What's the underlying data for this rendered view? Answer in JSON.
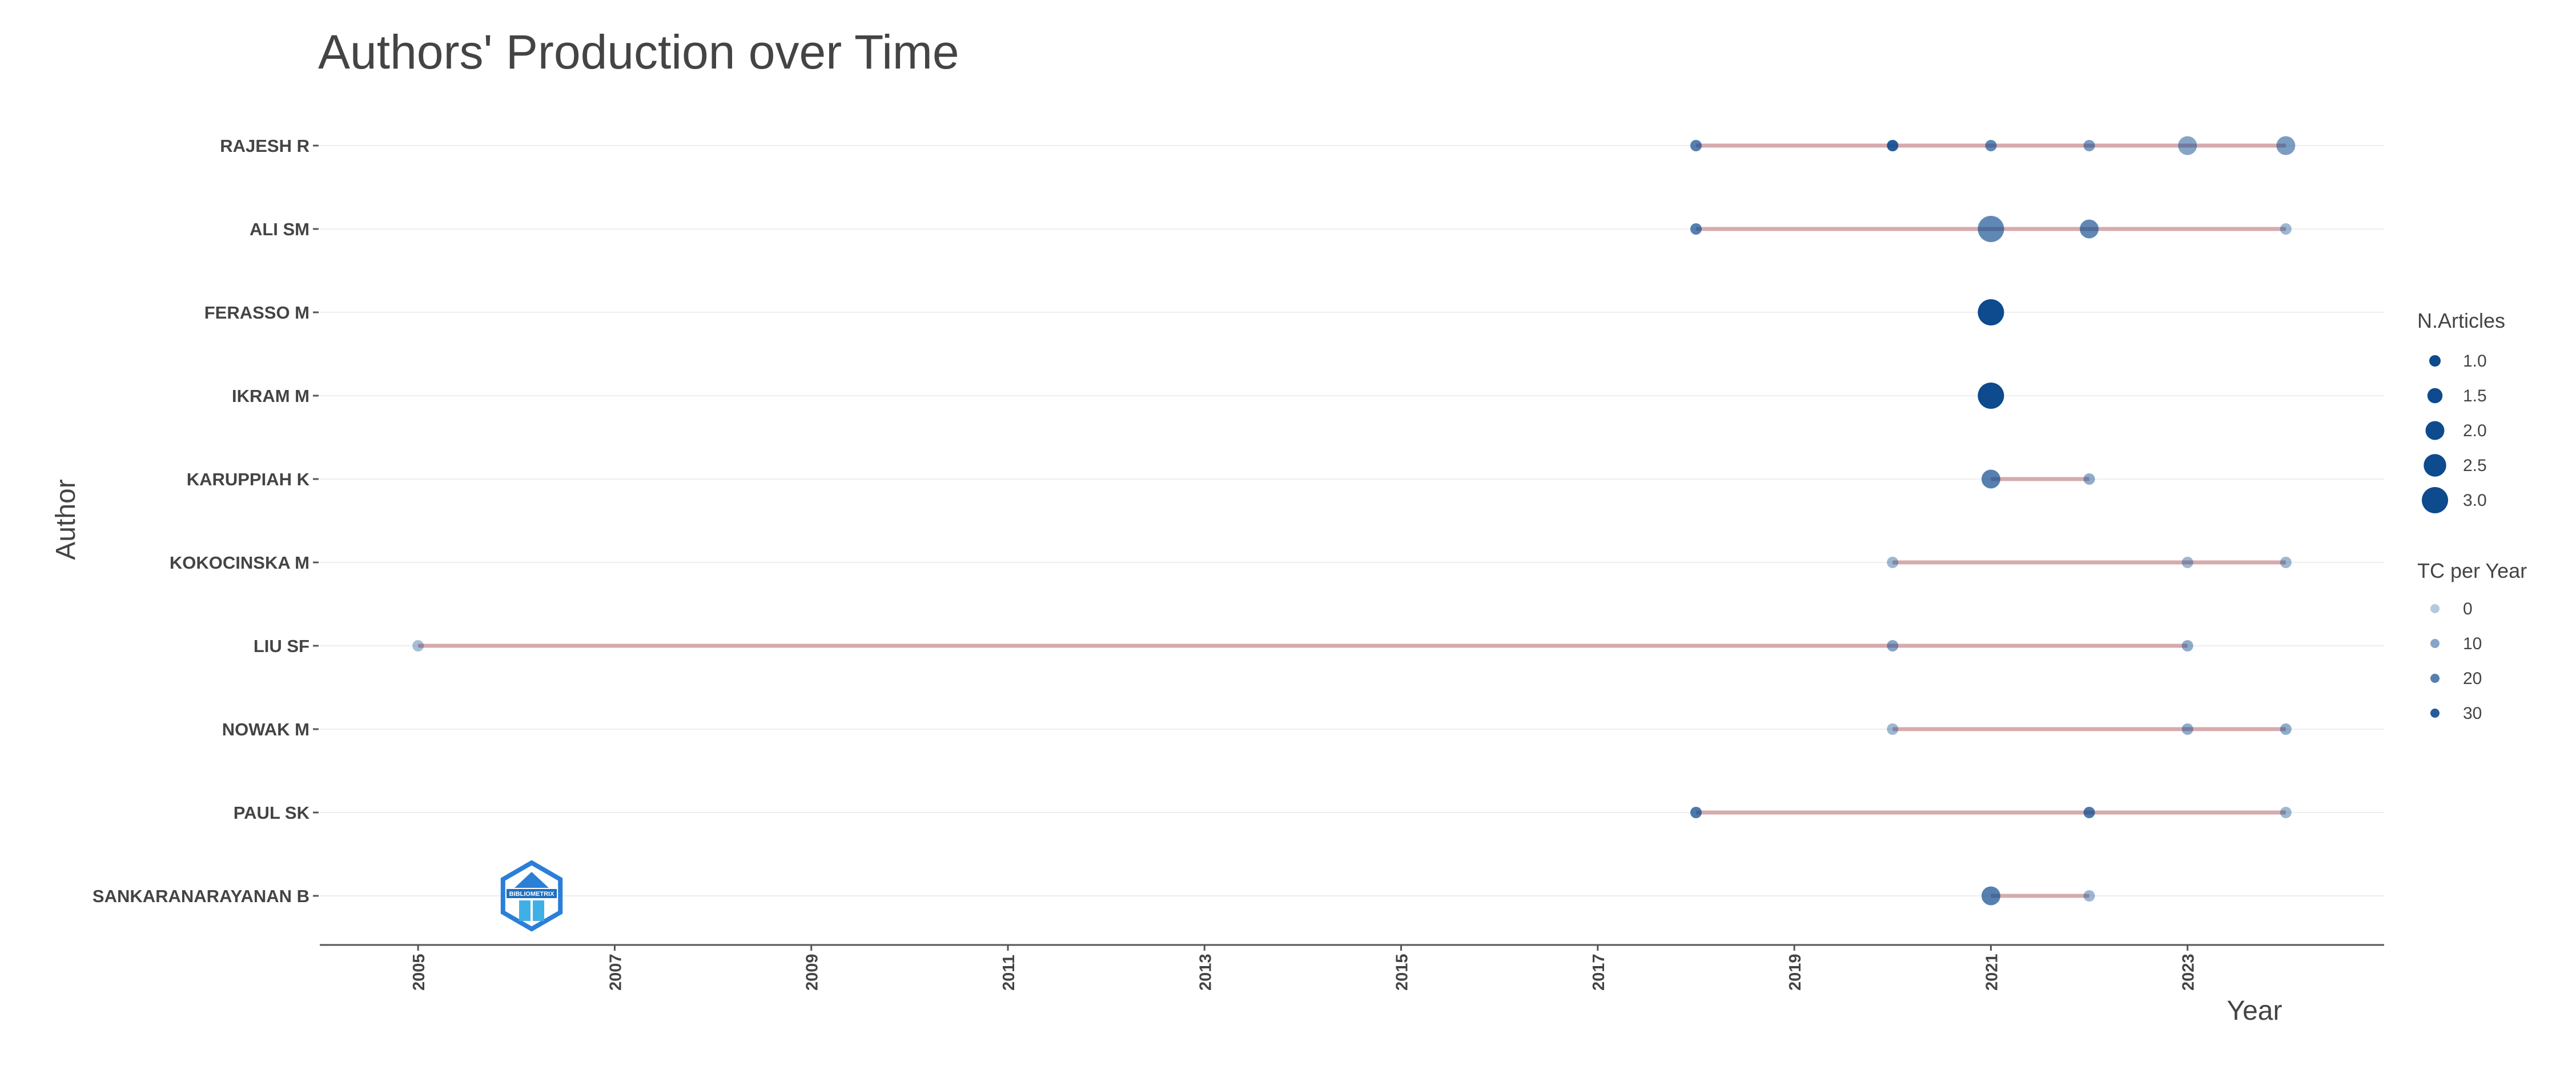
{
  "chart_data": {
    "type": "scatter",
    "title": "Authors' Production over Time",
    "xlabel": "Year",
    "ylabel": "Author",
    "xlim": [
      2004,
      2025
    ],
    "x_ticks": [
      "2005",
      "2007",
      "2009",
      "2011",
      "2013",
      "2015",
      "2017",
      "2019",
      "2021",
      "2023"
    ],
    "categories": [
      "RAJESH R",
      "ALI SM",
      "FERASSO M",
      "IKRAM M",
      "KARUPPIAH K",
      "KOKOCINSKA M",
      "LIU SF",
      "NOWAK M",
      "PAUL SK",
      "SANKARANARAYANAN B"
    ],
    "series": [
      {
        "author": "RAJESH R",
        "points": [
          {
            "year": 2018,
            "articles": 1,
            "tc": 20
          },
          {
            "year": 2020,
            "articles": 1,
            "tc": 30
          },
          {
            "year": 2021,
            "articles": 1,
            "tc": 18
          },
          {
            "year": 2022,
            "articles": 1,
            "tc": 12
          },
          {
            "year": 2023,
            "articles": 2,
            "tc": 10
          },
          {
            "year": 2024,
            "articles": 2,
            "tc": 12
          }
        ]
      },
      {
        "author": "ALI SM",
        "points": [
          {
            "year": 2018,
            "articles": 1,
            "tc": 20
          },
          {
            "year": 2021,
            "articles": 3,
            "tc": 18
          },
          {
            "year": 2022,
            "articles": 2,
            "tc": 18
          },
          {
            "year": 2024,
            "articles": 1,
            "tc": 5
          }
        ]
      },
      {
        "author": "FERASSO M",
        "points": [
          {
            "year": 2021,
            "articles": 3,
            "tc": 35
          }
        ]
      },
      {
        "author": "IKRAM M",
        "points": [
          {
            "year": 2021,
            "articles": 3,
            "tc": 35
          }
        ]
      },
      {
        "author": "KARUPPIAH K",
        "points": [
          {
            "year": 2021,
            "articles": 2,
            "tc": 20
          },
          {
            "year": 2022,
            "articles": 1,
            "tc": 8
          }
        ]
      },
      {
        "author": "KOKOCINSKA M",
        "points": [
          {
            "year": 2020,
            "articles": 1,
            "tc": 5
          },
          {
            "year": 2023,
            "articles": 1,
            "tc": 5
          },
          {
            "year": 2024,
            "articles": 1,
            "tc": 5
          }
        ]
      },
      {
        "author": "LIU SF",
        "points": [
          {
            "year": 2005,
            "articles": 1,
            "tc": 3
          },
          {
            "year": 2020,
            "articles": 1,
            "tc": 10
          },
          {
            "year": 2023,
            "articles": 1,
            "tc": 8
          }
        ]
      },
      {
        "author": "NOWAK M",
        "points": [
          {
            "year": 2020,
            "articles": 1,
            "tc": 5
          },
          {
            "year": 2023,
            "articles": 1,
            "tc": 8
          },
          {
            "year": 2024,
            "articles": 1,
            "tc": 8
          }
        ]
      },
      {
        "author": "PAUL SK",
        "points": [
          {
            "year": 2018,
            "articles": 1,
            "tc": 22
          },
          {
            "year": 2022,
            "articles": 1,
            "tc": 22
          },
          {
            "year": 2024,
            "articles": 1,
            "tc": 5
          }
        ]
      },
      {
        "author": "SANKARANARAYANAN B",
        "points": [
          {
            "year": 2021,
            "articles": 2,
            "tc": 20
          },
          {
            "year": 2022,
            "articles": 1,
            "tc": 5
          }
        ]
      }
    ],
    "legend_placement": "right",
    "legend_size": {
      "title": "N.Articles",
      "entries": [
        {
          "label": "1.0",
          "value": 1.0
        },
        {
          "label": "1.5",
          "value": 1.5
        },
        {
          "label": "2.0",
          "value": 2.0
        },
        {
          "label": "2.5",
          "value": 2.5
        },
        {
          "label": "3.0",
          "value": 3.0
        }
      ]
    },
    "legend_color": {
      "title": "TC per Year",
      "entries": [
        {
          "label": "0",
          "value": 0
        },
        {
          "label": "10",
          "value": 10
        },
        {
          "label": "20",
          "value": 20
        },
        {
          "label": "30",
          "value": 30
        }
      ]
    },
    "colors": {
      "point": "#0d4a8e",
      "segment": "#d3a3a6",
      "gridline": "#eeeeee",
      "axis": "#555555",
      "text": "#444444"
    },
    "grid": true,
    "watermark": "BIBLIOMETRIX"
  }
}
